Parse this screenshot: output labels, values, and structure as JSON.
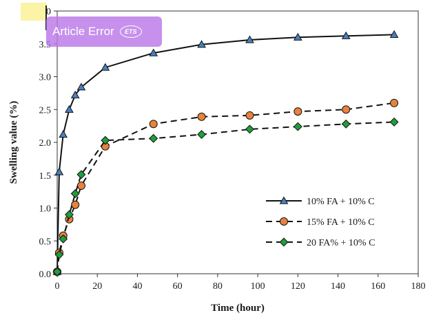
{
  "overlay": {
    "badge_text": "Article Error",
    "badge_logo": "ETS",
    "highlight_color": "#fbf3a6",
    "badge_color": "#ba78e8"
  },
  "chart_data": {
    "type": "line",
    "xlabel": "Time (hour)",
    "ylabel": "Swelling value (%)",
    "xlim": [
      0,
      180
    ],
    "ylim": [
      0,
      4.0
    ],
    "xticks": [
      0,
      20,
      40,
      60,
      80,
      100,
      120,
      140,
      160,
      180
    ],
    "yticks": [
      "0.0",
      "0.5",
      "1.0",
      "1.5",
      "2.0",
      "2.5",
      "3.0",
      "3.5",
      "4.0"
    ],
    "grid": false,
    "legend_position": "right-middle",
    "series": [
      {
        "name": "10% FA + 10% C",
        "line": "solid",
        "marker": "triangle",
        "marker_color": "#4a7fc1",
        "x": [
          0,
          1,
          3,
          6,
          9,
          12,
          24,
          48,
          72,
          96,
          120,
          144,
          168
        ],
        "y": [
          0.03,
          1.55,
          2.12,
          2.5,
          2.72,
          2.84,
          3.14,
          3.36,
          3.49,
          3.56,
          3.6,
          3.62,
          3.64
        ]
      },
      {
        "name": "15% FA + 10% C",
        "line": "dashed",
        "marker": "circle",
        "marker_color": "#e9823c",
        "x": [
          0,
          1,
          3,
          6,
          9,
          12,
          24,
          48,
          72,
          96,
          120,
          144,
          168
        ],
        "y": [
          0.03,
          0.32,
          0.58,
          0.83,
          1.05,
          1.34,
          1.94,
          2.28,
          2.39,
          2.41,
          2.47,
          2.5,
          2.6
        ]
      },
      {
        "name": "20 FA% + 10% C",
        "line": "dashed",
        "marker": "diamond",
        "marker_color": "#1f9e3c",
        "x": [
          0,
          1,
          3,
          6,
          9,
          12,
          24,
          48,
          72,
          96,
          120,
          144,
          168
        ],
        "y": [
          0.03,
          0.29,
          0.53,
          0.9,
          1.22,
          1.51,
          2.03,
          2.06,
          2.12,
          2.2,
          2.24,
          2.28,
          2.31
        ]
      }
    ]
  }
}
